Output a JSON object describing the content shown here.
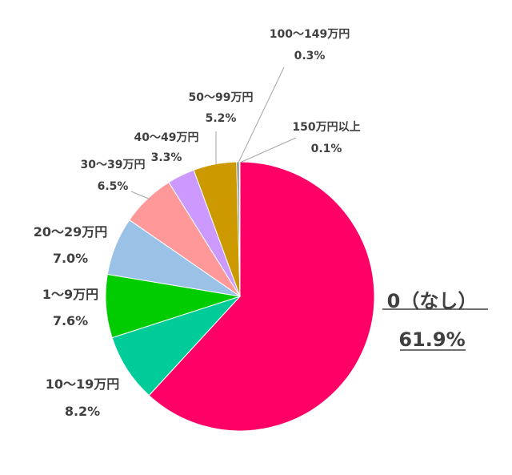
{
  "chart_data": {
    "type": "pie",
    "slices": [
      {
        "label": "0（なし）",
        "value": 61.9,
        "display": "61.9%",
        "color": "#FF0066"
      },
      {
        "label": "10〜19万円",
        "value": 8.2,
        "display": "8.2%",
        "color": "#00CC99"
      },
      {
        "label": "1〜9万円",
        "value": 7.6,
        "display": "7.6%",
        "color": "#00CC00"
      },
      {
        "label": "20〜29万円",
        "value": 7.0,
        "display": "7.0%",
        "color": "#99C2E6"
      },
      {
        "label": "30〜39万円",
        "value": 6.5,
        "display": "6.5%",
        "color": "#FF9999"
      },
      {
        "label": "40〜49万円",
        "value": 3.3,
        "display": "3.3%",
        "color": "#CC99FF"
      },
      {
        "label": "50〜99万円",
        "value": 5.2,
        "display": "5.2%",
        "color": "#CC9900"
      },
      {
        "label": "100〜149万円",
        "value": 0.3,
        "display": "0.3%",
        "color": "#7F7F7F"
      },
      {
        "label": "150万円以上",
        "value": 0.1,
        "display": "0.1%",
        "color": "#BFBFBF"
      }
    ]
  }
}
